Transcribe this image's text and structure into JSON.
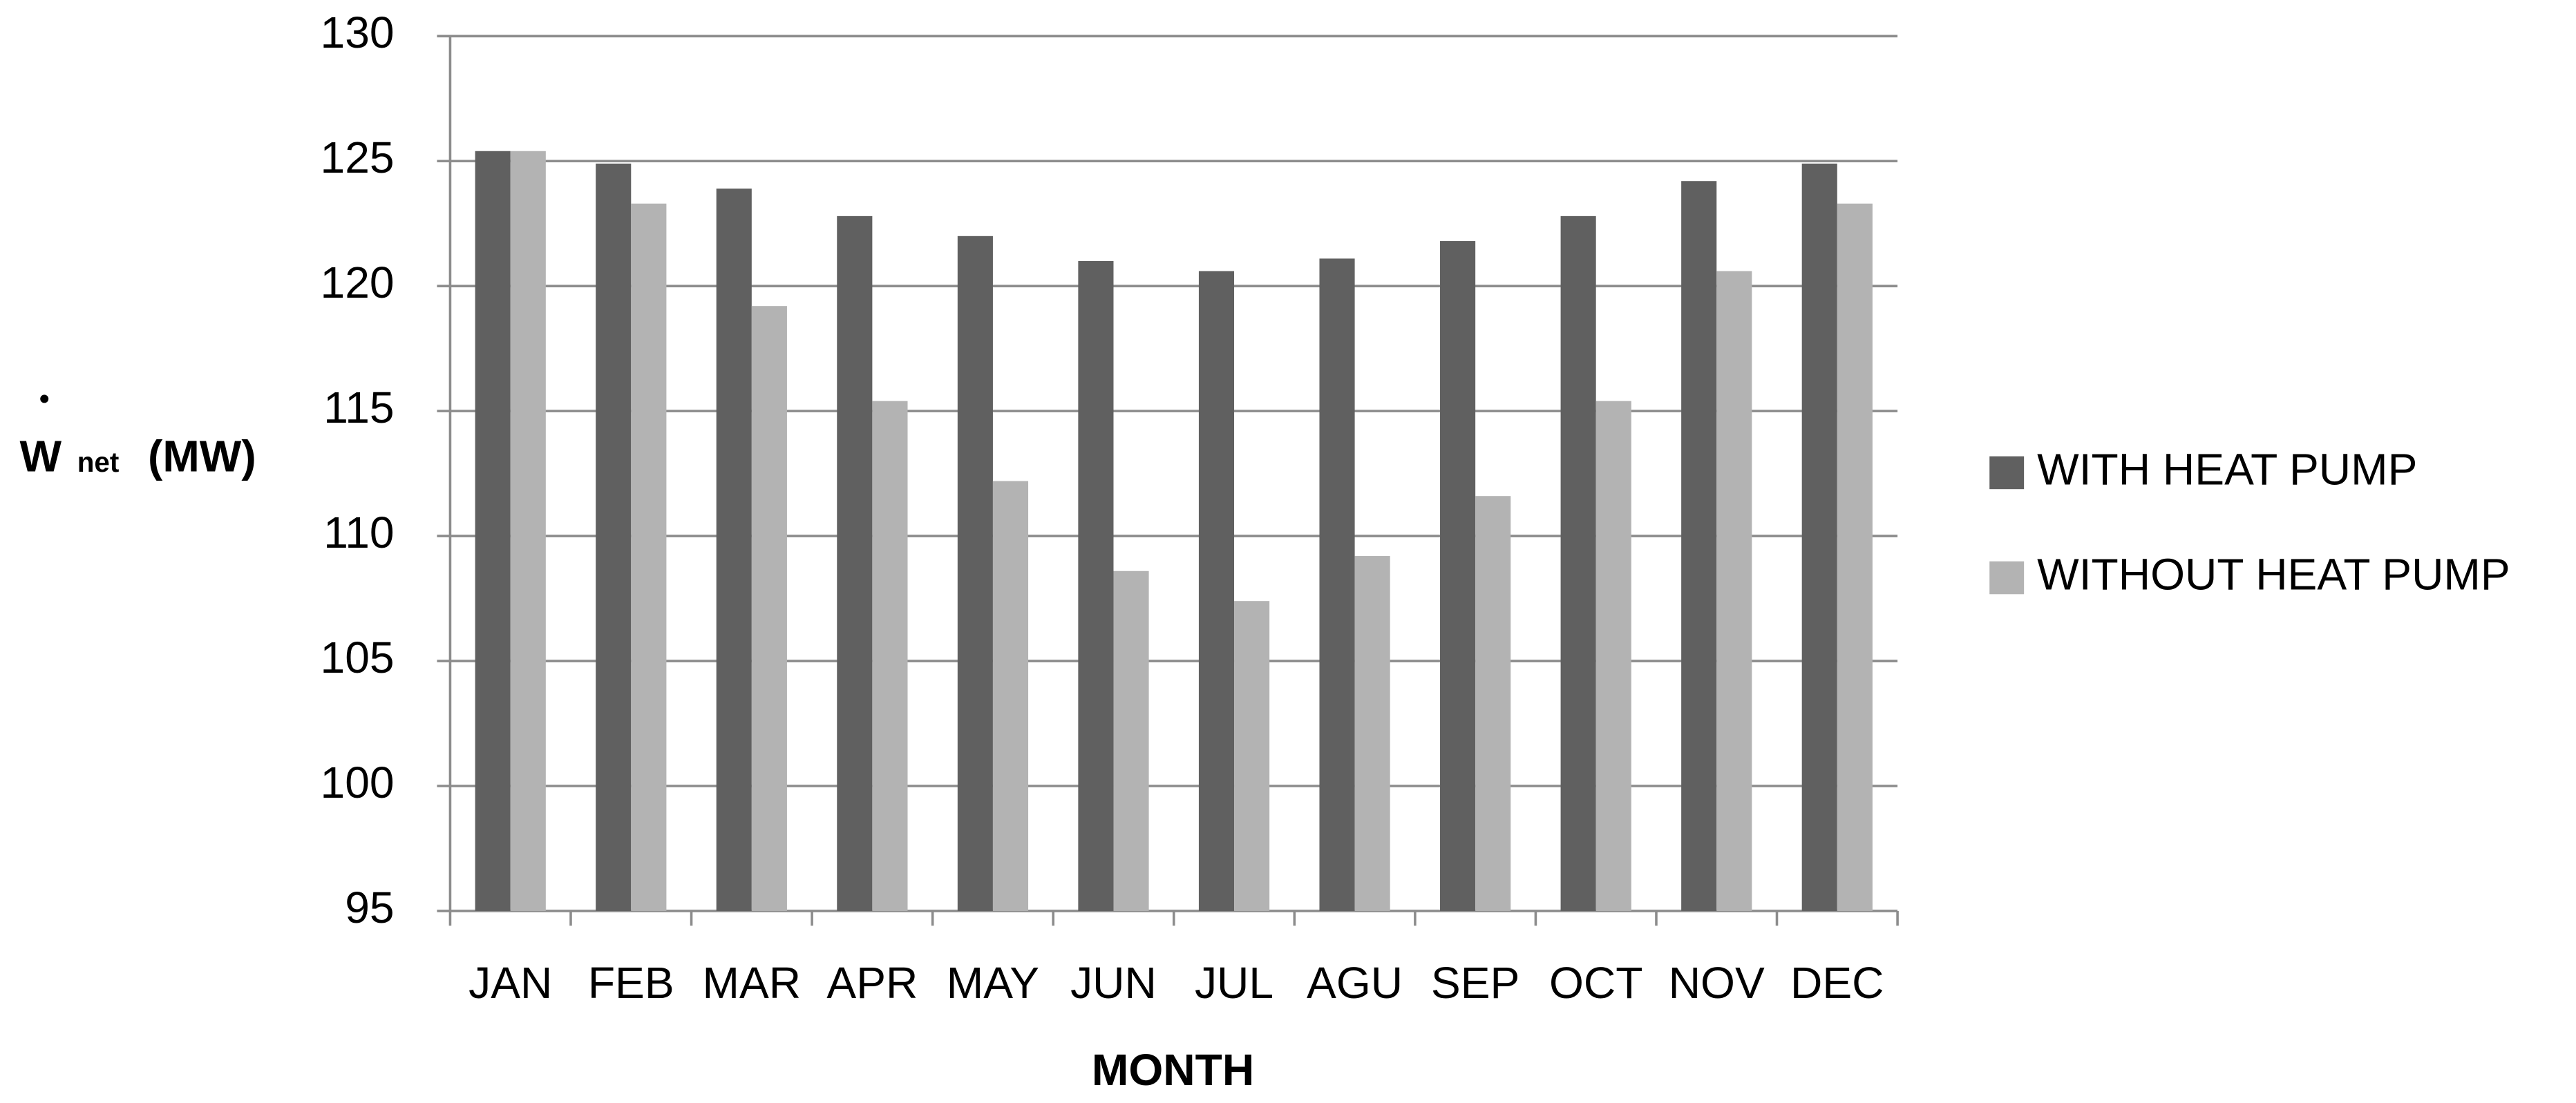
{
  "chart_data": {
    "type": "bar",
    "x_label": "MONTH",
    "y_label": {
      "symbol": "W",
      "subscript": "net",
      "unit": "(MW)"
    },
    "categories": [
      "JAN",
      "FEB",
      "MAR",
      "APR",
      "MAY",
      "JUN",
      "JUL",
      "AGU",
      "SEP",
      "OCT",
      "NOV",
      "DEC"
    ],
    "series": [
      {
        "name": "WITH HEAT PUMP",
        "color": "#606060",
        "values": [
          125.4,
          124.9,
          123.9,
          122.8,
          122.0,
          121.0,
          120.6,
          121.1,
          121.8,
          122.8,
          124.2,
          124.9
        ]
      },
      {
        "name": "WITHOUT HEAT PUMP",
        "color": "#b3b3b3",
        "values": [
          125.4,
          123.3,
          119.2,
          115.4,
          112.2,
          108.6,
          107.4,
          109.2,
          111.6,
          115.4,
          120.6,
          123.3
        ]
      }
    ],
    "ylim": [
      95,
      130
    ],
    "yticks": [
      95,
      100,
      105,
      110,
      115,
      120,
      125,
      130
    ],
    "grid": true,
    "legend": "right"
  }
}
